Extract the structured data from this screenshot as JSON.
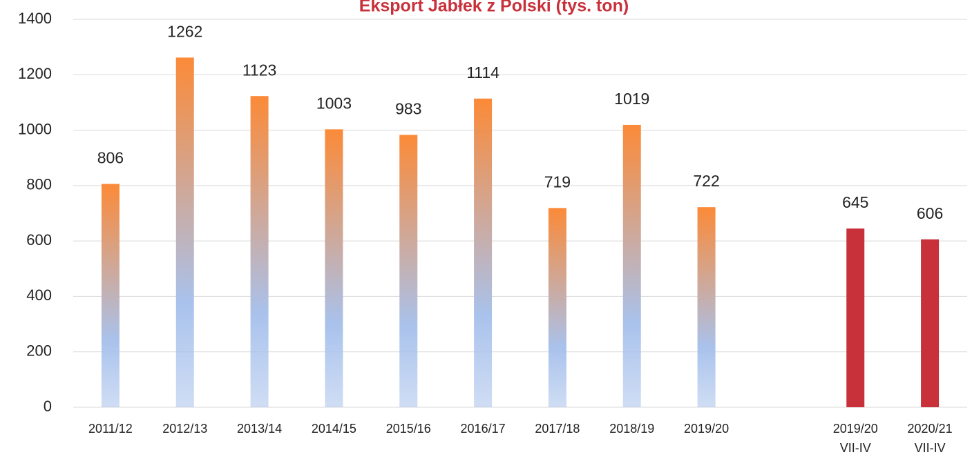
{
  "chart_data": {
    "type": "bar",
    "title": "Eksport Jabłek z Polski (tys. ton)",
    "categories": [
      "2011/12",
      "2012/13",
      "2013/14",
      "2014/15",
      "2015/16",
      "2016/17",
      "2017/18",
      "2018/19",
      "2019/20",
      null,
      "2019/20\nVII-IV",
      "2020/21\nVII-IV"
    ],
    "values": [
      806,
      1262,
      1123,
      1003,
      983,
      1114,
      719,
      1019,
      722,
      null,
      645,
      606
    ],
    "colors": [
      [
        "#fb8a38",
        "#a9c2ec"
      ],
      [
        "#fb8a38",
        "#a9c2ec"
      ],
      [
        "#fb8a38",
        "#a9c2ec"
      ],
      [
        "#fb8a38",
        "#a9c2ec"
      ],
      [
        "#fb8a38",
        "#a9c2ec"
      ],
      [
        "#fb8a38",
        "#a9c2ec"
      ],
      [
        "#fb8a38",
        "#a9c2ec"
      ],
      [
        "#fb8a38",
        "#a9c2ec"
      ],
      [
        "#fb8a38",
        "#a9c2ec"
      ],
      null,
      "#c8303a",
      "#c8303a"
    ],
    "ylim": [
      0,
      1400
    ],
    "yticks": [
      0,
      200,
      400,
      600,
      800,
      1000,
      1200,
      1400
    ],
    "grid": true
  }
}
